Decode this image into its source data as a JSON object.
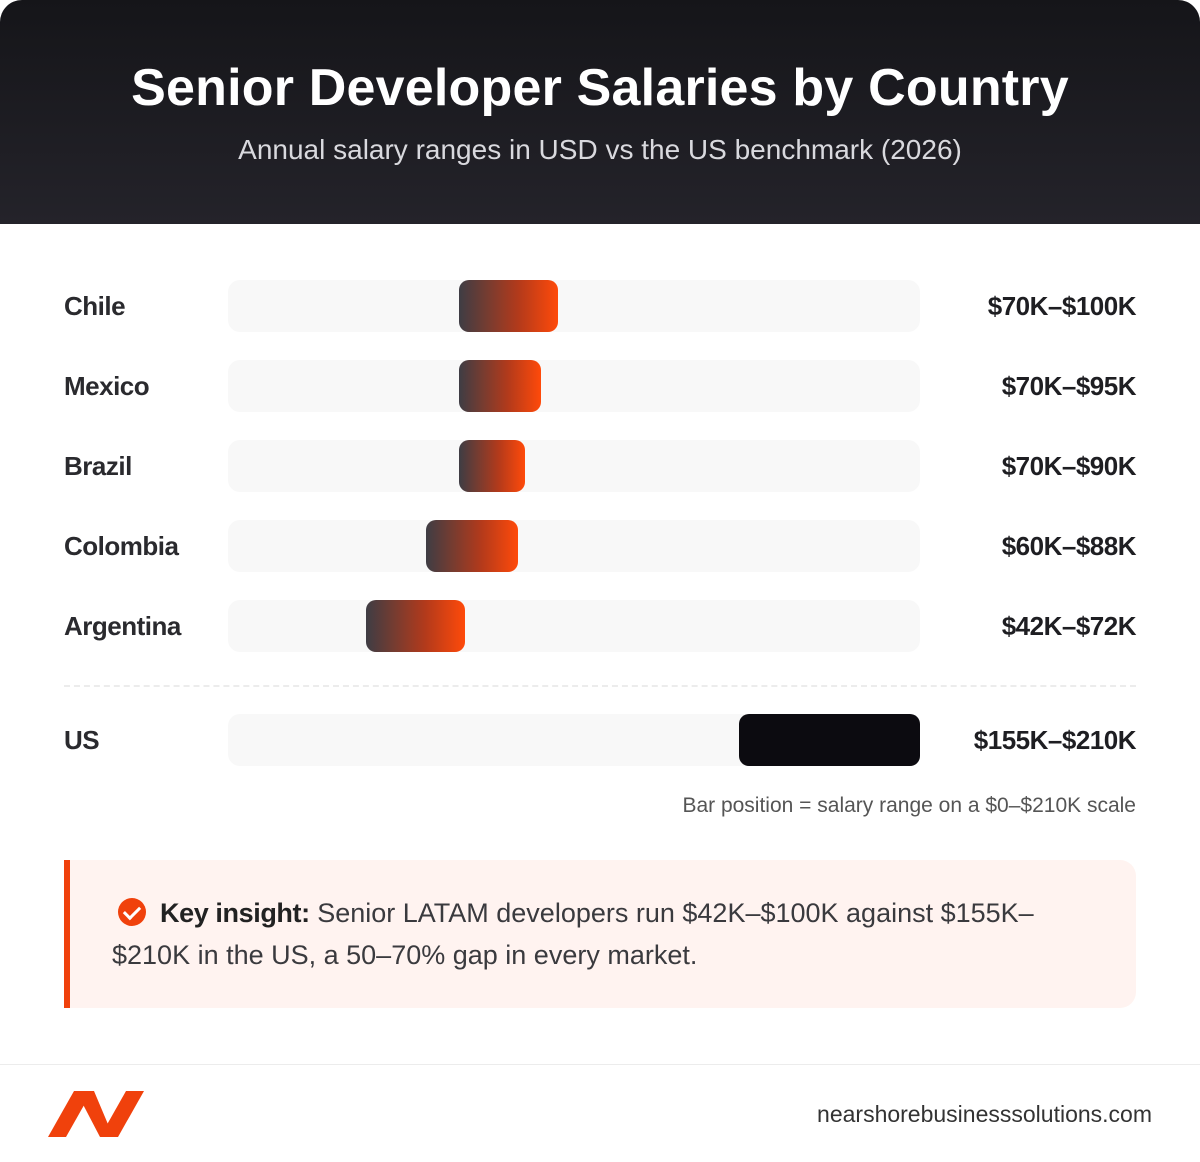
{
  "header": {
    "title": "Senior Developer Salaries by Country",
    "subtitle": "Annual salary ranges in USD vs the US benchmark (2026)"
  },
  "chart_data": {
    "type": "range-bar",
    "title": "Senior Developer Salaries by Country",
    "subtitle": "Annual salary ranges in USD vs the US benchmark (2026)",
    "xlim": [
      0,
      210
    ],
    "unit": "K USD",
    "scale_note": "Bar position = salary range on a $0–$210K scale",
    "categories": [
      "Chile",
      "Mexico",
      "Brazil",
      "Colombia",
      "Argentina",
      "US"
    ],
    "series": [
      {
        "low": [
          70,
          70,
          70,
          60,
          42,
          155
        ],
        "high": [
          100,
          95,
          90,
          88,
          72,
          210
        ]
      }
    ],
    "range_labels": [
      "$70K–$100K",
      "$70K–$95K",
      "$70K–$90K",
      "$60K–$88K",
      "$42K–$72K",
      "$155K–$210K"
    ],
    "colors": {
      "latam_gradient_start": "#3e3d44",
      "latam_gradient_end": "#ff4a0a",
      "us": "#0c0b10"
    }
  },
  "insight": {
    "lead": "Key insight:",
    "text": " Senior LATAM developers run $42K–$100K against $155K–$210K in the US, a 50–70% gap in every market.",
    "icon": "check-circle-icon"
  },
  "footer": {
    "logo_icon": "brand-logo-icon",
    "website": "nearshorebusinesssolutions.com"
  },
  "colors": {
    "accent": "#f0410c",
    "header_bg": "#151519"
  }
}
